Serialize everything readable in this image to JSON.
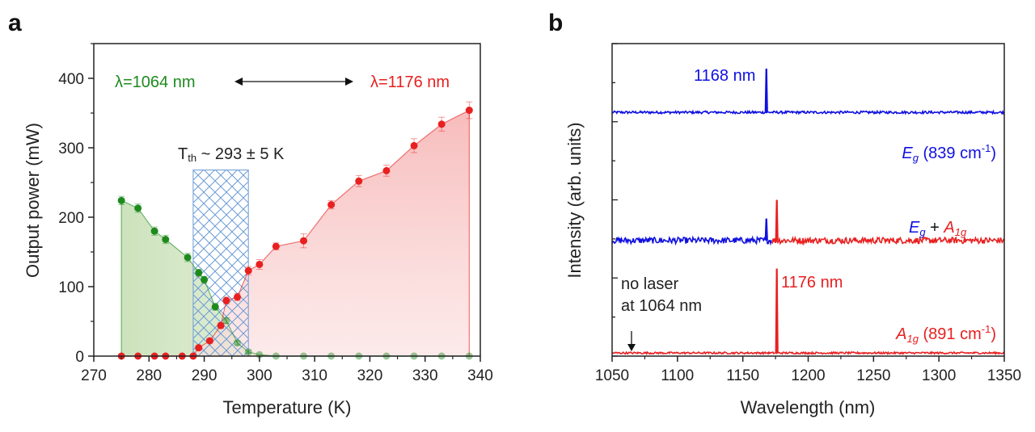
{
  "chart_data": [
    {
      "type": "line",
      "panel": "a",
      "xlabel": "Temperature (K)",
      "ylabel": "Output power (mW)",
      "xlim": [
        270,
        340
      ],
      "ylim": [
        0,
        450
      ],
      "xticks": [
        "270",
        "280",
        "290",
        "300",
        "310",
        "320",
        "330",
        "340"
      ],
      "yticks": [
        "0",
        "100",
        "200",
        "300",
        "400"
      ],
      "threshold_band": [
        288,
        298
      ],
      "threshold_band_top": 268,
      "series": [
        {
          "name": "λ=1064 nm",
          "color": "#1e8a1e",
          "x": [
            275,
            278,
            281,
            283,
            287,
            289,
            290,
            292,
            294,
            296,
            298,
            300,
            303,
            308,
            313,
            318,
            323,
            328,
            333,
            338
          ],
          "y": [
            224,
            213,
            180,
            168,
            142,
            120,
            110,
            71,
            51,
            19,
            6,
            2,
            0,
            0,
            0,
            0,
            0,
            0,
            0,
            0
          ],
          "err": [
            6,
            6,
            6,
            6,
            6,
            5,
            5,
            5,
            4,
            3,
            2,
            1,
            1,
            1,
            1,
            1,
            1,
            1,
            1,
            1
          ]
        },
        {
          "name": "λ=1176 nm",
          "color": "#e82020",
          "x": [
            275,
            278,
            281,
            283,
            286,
            288,
            289,
            291,
            293,
            294,
            296,
            298,
            300,
            303,
            308,
            313,
            318,
            323,
            328,
            333,
            338
          ],
          "y": [
            0,
            0,
            0,
            0,
            0,
            0,
            12,
            22,
            44,
            80,
            85,
            123,
            132,
            158,
            166,
            218,
            252,
            267,
            303,
            334,
            354
          ],
          "err": [
            1,
            1,
            1,
            1,
            1,
            1,
            3,
            3,
            4,
            5,
            5,
            6,
            7,
            5,
            10,
            6,
            8,
            8,
            10,
            10,
            12
          ]
        }
      ],
      "annotations": {
        "green_label": "λ=1064 nm",
        "red_label": "λ=1176 nm",
        "threshold_main": "T",
        "threshold_sub": "th",
        "threshold_rest": " ~ 293 ± 5 K"
      }
    },
    {
      "type": "line",
      "panel": "b",
      "xlabel": "Wavelength (nm)",
      "ylabel": "Intensity (arb. units)",
      "xlim": [
        1050,
        1350
      ],
      "xticks": [
        "1050",
        "1100",
        "1150",
        "1200",
        "1250",
        "1300",
        "1350"
      ],
      "traces": [
        {
          "label_main": "E",
          "label_sub": "g",
          "label_rest": " (839 cm",
          "label_sup": "-1",
          "label_close": ")",
          "baseline": 0.78,
          "peaks": [
            {
              "x": 1168,
              "h": 0.14
            }
          ],
          "color": "#1010e0",
          "noise": 0.004
        },
        {
          "label_main": "E",
          "label_sub": "g",
          "label_plus": " + ",
          "label_main2": "A",
          "label_sub2": "1g",
          "baseline": 0.37,
          "peaks": [
            {
              "x": 1168,
              "h": 0.07,
              "color": "#1010e0"
            },
            {
              "x": 1176,
              "h": 0.13,
              "color": "#e82020"
            }
          ],
          "color_left": "#1010e0",
          "color_right": "#e82020",
          "split": 1172,
          "noise": 0.01
        },
        {
          "label_main": "A",
          "label_sub": "1g",
          "label_rest": " (891 cm",
          "label_sup": "-1",
          "label_close": ")",
          "baseline": 0.01,
          "peaks": [
            {
              "x": 1176,
              "h": 0.27
            }
          ],
          "color": "#e82020",
          "noise": 0.003
        }
      ],
      "annotations": {
        "peak_blue": "1168 nm",
        "peak_red": "1176 nm",
        "no_laser_1": "no laser",
        "no_laser_2": "at 1064 nm"
      }
    }
  ],
  "panels": {
    "a": "a",
    "b": "b"
  }
}
